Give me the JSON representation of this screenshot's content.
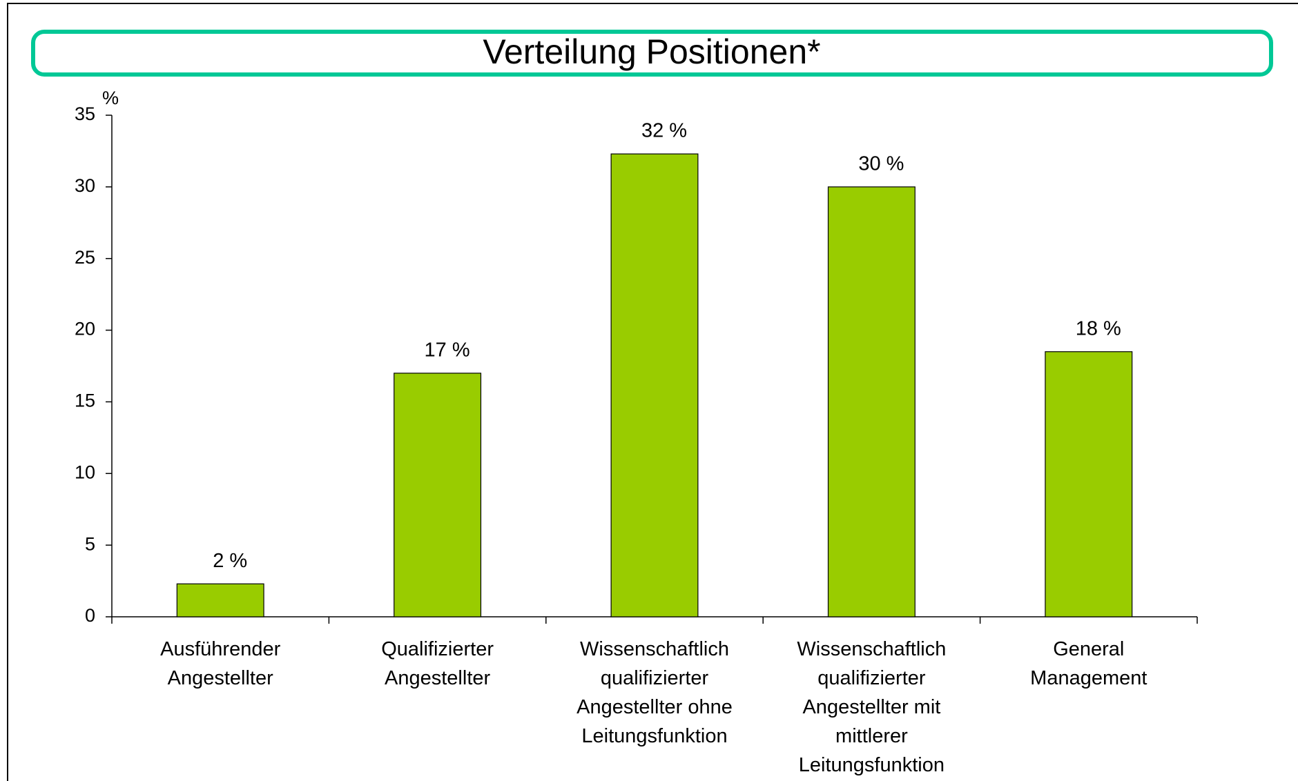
{
  "chart_data": {
    "type": "bar",
    "title": "Verteilung Positionen*",
    "y_unit": "%",
    "categories": [
      "Ausführender\nAngestellter",
      "Qualifizierter\nAngestellter",
      "Wissenschaftlich\nqualifizierter\nAngestellter ohne\nLeitungsfunktion",
      "Wissenschaftlich\nqualifizierter\nAngestellter mit\nmittlerer\nLeitungsfunktion",
      "General\nManagement"
    ],
    "values": [
      2.3,
      17,
      32.3,
      30,
      18.5
    ],
    "value_labels": [
      "2 %",
      "17 %",
      "32 %",
      "30 %",
      "18 %"
    ],
    "color": "#99cc00",
    "ylim": [
      0,
      35
    ],
    "yticks": [
      0,
      5,
      10,
      15,
      20,
      25,
      30,
      35
    ],
    "grid": false
  }
}
